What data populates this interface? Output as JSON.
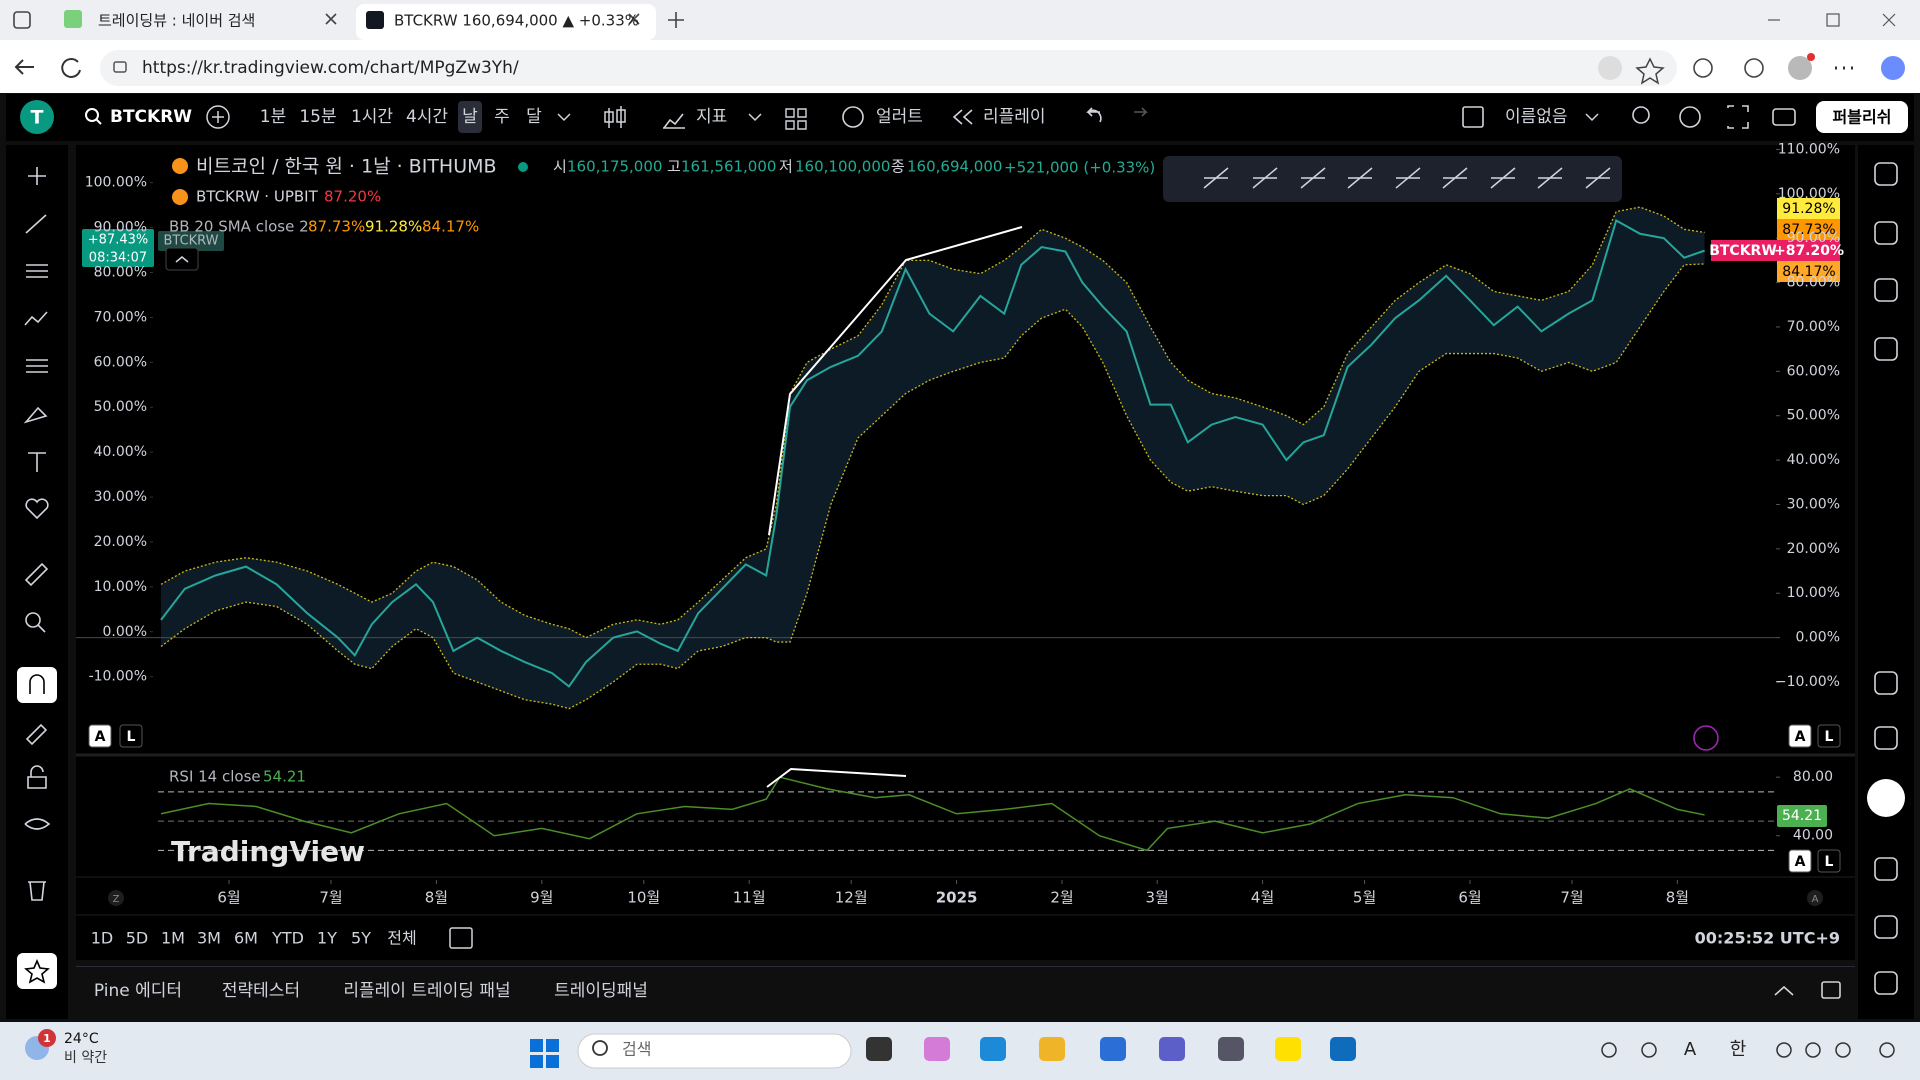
{
  "browser": {
    "tabs": [
      "트레이딩뷰 : 네이버 검색",
      "BTCKRW 160,694,000 ▲ +0.33%"
    ],
    "url": "https://kr.tradingview.com/chart/MPgZw3Yh/"
  },
  "toolbar": {
    "avatar": "T",
    "symbol": "BTCKRW",
    "intervals": [
      "1분",
      "15분",
      "1시간",
      "4시간",
      "날",
      "주",
      "달"
    ],
    "indicators": "지표",
    "alert": "얼러트",
    "replay": "리플레이",
    "layout_name": "이름없음",
    "publish": "퍼블리쉬"
  },
  "legend": {
    "title": "비트코인 / 한국 원 · 1날 · BITHUMB",
    "ohlc": [
      {
        "label": "시",
        "value": "160,175,000"
      },
      {
        "label": "고",
        "value": "161,561,000"
      },
      {
        "label": "저",
        "value": "160,100,000"
      },
      {
        "label": "종",
        "value": "160,694,000"
      }
    ],
    "change": "+521,000 (+0.33%)",
    "upbit": "BTCKRW · UPBIT",
    "upbit_value": "87.20%",
    "bb_name": "BB 20 SMA close 2",
    "bb_values": [
      "87.73%",
      "91.28%",
      "84.17%"
    ]
  },
  "labels": {
    "left_change": "+87.43%",
    "left_time": "08:34:07",
    "price_change": "+87.20%"
  },
  "chart": {
    "type": "line",
    "x": [
      -20,
      -13,
      -4,
      5,
      14,
      23,
      32,
      37,
      42,
      48,
      55,
      60,
      66,
      73,
      80,
      87,
      95,
      100,
      105,
      113,
      120,
      127,
      132,
      138,
      145,
      152,
      158,
      161,
      165,
      170,
      177,
      185,
      192,
      199,
      206,
      213,
      221,
      228,
      233,
      239,
      246,
      251,
      257,
      264,
      271,
      277,
      282,
      289,
      296,
      304,
      311,
      316,
      322,
      329,
      336,
      343,
      350,
      358,
      365,
      372,
      379,
      386,
      394,
      401,
      408,
      415,
      422,
      428,
      434
    ],
    "series": [
      {
        "name": "BTCKRW",
        "color": "#26a69a",
        "values": [
          4,
          11,
          14,
          16,
          12,
          5.5,
          0,
          -4,
          3,
          8,
          12,
          8,
          -3,
          0,
          -3,
          -5.5,
          -8,
          -11,
          -5.5,
          0,
          1.4,
          -1.4,
          -3,
          5.5,
          11,
          16.5,
          14,
          27.6,
          52,
          58,
          61,
          63.5,
          69,
          83,
          73,
          69,
          77,
          73,
          84,
          88,
          87,
          80,
          74.6,
          69,
          52.5,
          52.5,
          44,
          48,
          49.7,
          48,
          40,
          44,
          45.6,
          61,
          66,
          72,
          76,
          81.5,
          76,
          70.4,
          74.6,
          69,
          73,
          76,
          94,
          91,
          90,
          85.6,
          87.2
        ]
      },
      {
        "color": "#c9b81e",
        "values": [
          12,
          15,
          17,
          18,
          17,
          15,
          12,
          10,
          8,
          10,
          15,
          17,
          16,
          13,
          8,
          5,
          3,
          2,
          0,
          3,
          4,
          3,
          4,
          8,
          13,
          18,
          20,
          30,
          55,
          62,
          65,
          68,
          75,
          85,
          85,
          83,
          82,
          85,
          88,
          92,
          90,
          88,
          85,
          80,
          70,
          62,
          58,
          55,
          54,
          52,
          50,
          48,
          52,
          64,
          70,
          76,
          80,
          84,
          82,
          78,
          77,
          76,
          78,
          84,
          96,
          97,
          95,
          92,
          91.3
        ]
      },
      {
        "color": "#c9b81e",
        "values": [
          -2,
          2,
          6,
          8,
          7,
          3,
          -3,
          -6,
          -7,
          -2,
          2,
          0,
          -8,
          -10,
          -12,
          -14,
          -15,
          -16,
          -14,
          -10,
          -6,
          -6,
          -7,
          -3,
          -2,
          0,
          0,
          -1,
          -1,
          10,
          30,
          45,
          50,
          55,
          58,
          60,
          62,
          63,
          68,
          72,
          74,
          70,
          62,
          50,
          40,
          35,
          33,
          34,
          33,
          32,
          32,
          30,
          32,
          38,
          45,
          52,
          60,
          64,
          64,
          64,
          63,
          60,
          62,
          60,
          62,
          70,
          78,
          84,
          84.2
        ]
      }
    ],
    "band_fill": "#0d1b26",
    "xlim": [
      -45,
      455
    ],
    "xticks": [
      {
        "value": 0,
        "label": "6월"
      },
      {
        "value": 30,
        "label": "7월"
      },
      {
        "value": 61,
        "label": "8월"
      },
      {
        "value": 92,
        "label": "9월"
      },
      {
        "value": 122,
        "label": "10월"
      },
      {
        "value": 153,
        "label": "11월"
      },
      {
        "value": 183,
        "label": "12월"
      },
      {
        "value": 214,
        "label": "2025"
      },
      {
        "value": 245,
        "label": "2월"
      },
      {
        "value": 273,
        "label": "3월"
      },
      {
        "value": 304,
        "label": "4월"
      },
      {
        "value": 334,
        "label": "5월"
      },
      {
        "value": 365,
        "label": "6월"
      },
      {
        "value": 395,
        "label": "7월"
      },
      {
        "value": 426,
        "label": "8월"
      }
    ],
    "ylim": [
      -26,
      111
    ],
    "yticks": [
      {
        "value": 110,
        "label": "110.00%"
      },
      {
        "value": 100,
        "label": "100.00%"
      },
      {
        "value": 90,
        "label": "90.00%"
      },
      {
        "value": 80,
        "label": "80.00%"
      },
      {
        "value": 70,
        "label": "70.00%"
      },
      {
        "value": 60,
        "label": "60.00%"
      },
      {
        "value": 50,
        "label": "50.00%"
      },
      {
        "value": 40,
        "label": "40.00%"
      },
      {
        "value": 30,
        "label": "30.00%"
      },
      {
        "value": 20,
        "label": "20.00%"
      },
      {
        "value": 10,
        "label": "10.00%"
      },
      {
        "value": 0,
        "label": "0.00%"
      },
      {
        "value": -10,
        "label": "−10.00%"
      }
    ],
    "y2lim": [
      -27,
      108.4
    ],
    "y2ticks": [
      {
        "value": 100,
        "label": "100.00%"
      },
      {
        "value": 90,
        "label": "90.00%"
      },
      {
        "value": 80,
        "label": "80.00%"
      },
      {
        "value": 70,
        "label": "70.00%"
      },
      {
        "value": 60,
        "label": "60.00%"
      },
      {
        "value": 50,
        "label": "50.00%"
      },
      {
        "value": 40,
        "label": "40.00%"
      },
      {
        "value": 30,
        "label": "30.00%"
      },
      {
        "value": 20,
        "label": "20.00%"
      },
      {
        "value": 10,
        "label": "10.00%"
      },
      {
        "value": 0,
        "label": "0.00%"
      },
      {
        "value": -10,
        "label": "-10.00%"
      }
    ]
  },
  "rsi": {
    "name": "RSI 14 close",
    "current_label": "54.21",
    "color": "#4b8f29",
    "x": [
      -20,
      -6,
      8,
      22,
      36,
      50,
      64,
      78,
      92,
      106,
      120,
      134,
      148,
      158,
      162,
      176,
      190,
      200,
      214,
      228,
      242,
      256,
      270,
      276,
      290,
      304,
      318,
      332,
      346,
      360,
      374,
      388,
      402,
      412,
      426,
      434
    ],
    "values": [
      55,
      62,
      60,
      50,
      42,
      55,
      62,
      40,
      45,
      38,
      55,
      60,
      58,
      65,
      80,
      72,
      66,
      68,
      55,
      58,
      62,
      40,
      30,
      45,
      50,
      42,
      48,
      62,
      68,
      66,
      55,
      52,
      62,
      72,
      58,
      54.21
    ],
    "ylim": [
      12.5,
      93.8
    ],
    "yticks": [
      {
        "value": 80,
        "label": "80.00"
      },
      {
        "value": 40,
        "label": "40.00"
      }
    ],
    "levels": [
      70,
      50,
      30
    ]
  },
  "pane_buttons": [
    "A",
    "L"
  ],
  "watermark": "TradingView",
  "time_axis_corners": [
    "Z",
    "A"
  ],
  "range_buttons": [
    "1D",
    "5D",
    "1M",
    "3M",
    "6M",
    "YTD",
    "1Y",
    "5Y",
    "전체"
  ],
  "clock": "00:25:52 UTC+9",
  "bottom_tabs": [
    "Pine 에디터",
    "전략테스터",
    "리플레이 트레이딩 패널",
    "트레이딩패널"
  ],
  "taskbar": {
    "weather_temp": "24°C",
    "weather_desc": "비 약간",
    "badge": "1",
    "search": "검색",
    "font": "A",
    "ime": "한"
  }
}
